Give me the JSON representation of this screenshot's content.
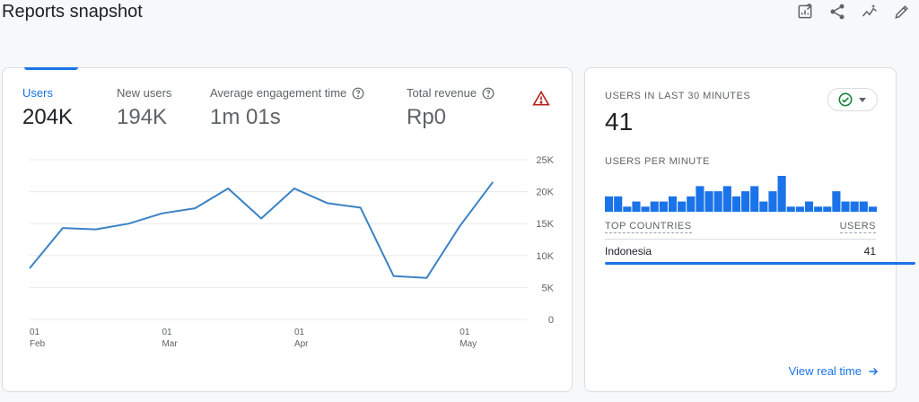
{
  "page": {
    "title": "Reports snapshot"
  },
  "toolbar": {
    "icons": [
      "edit-report-icon",
      "share-icon",
      "insights-icon",
      "pencil-icon"
    ]
  },
  "metrics": [
    {
      "label": "Users",
      "value": "204K",
      "has_help": false,
      "active": true
    },
    {
      "label": "New users",
      "value": "194K",
      "has_help": false,
      "active": false
    },
    {
      "label": "Average engagement time",
      "value": "1m 01s",
      "has_help": true,
      "active": false
    },
    {
      "label": "Total revenue",
      "value": "Rp0",
      "has_help": true,
      "active": false
    }
  ],
  "colors": {
    "accent": "#1a73e8",
    "line": "#3b82c4",
    "bar": "#1a73e8",
    "warning": "#b3261e",
    "success": "#188038"
  },
  "chart_data": {
    "type": "line",
    "x": [
      "Feb 1",
      "Feb 8",
      "Feb 15",
      "Feb 22",
      "Mar 1",
      "Mar 8",
      "Mar 15",
      "Mar 22",
      "Mar 29",
      "Apr 5",
      "Apr 12",
      "Apr 19",
      "Apr 26",
      "May 3",
      "May 10"
    ],
    "series": [
      {
        "values": [
          8000,
          14300,
          14100,
          15000,
          16600,
          17400,
          20500,
          15800,
          20500,
          18200,
          17500,
          6800,
          6500,
          14600,
          21500
        ]
      }
    ],
    "ylim": [
      0,
      25000
    ],
    "y_ticks": [
      0,
      5000,
      10000,
      15000,
      20000,
      25000
    ],
    "y_tick_labels": [
      "0",
      "5K",
      "10K",
      "15K",
      "20K",
      "25K"
    ],
    "x_ticks": [
      {
        "index": 0,
        "day": "01",
        "month": "Feb"
      },
      {
        "index": 4,
        "day": "01",
        "month": "Mar"
      },
      {
        "index": 8,
        "day": "01",
        "month": "Apr"
      },
      {
        "index": 13,
        "day": "01",
        "month": "May"
      }
    ],
    "grid": true
  },
  "realtime": {
    "title": "USERS IN LAST 30 MINUTES",
    "count": "41",
    "status_icon": "check-circle-icon",
    "per_minute_label": "USERS PER MINUTE",
    "per_minute": [
      3,
      3,
      1,
      2,
      1,
      2,
      2,
      3,
      2,
      3,
      5,
      4,
      4,
      5,
      3,
      4,
      5,
      2,
      4,
      7,
      1,
      1,
      2,
      1,
      1,
      4,
      2,
      2,
      2,
      1
    ],
    "columns": {
      "left": "TOP COUNTRIES",
      "right": "USERS"
    },
    "rows": [
      {
        "country": "Indonesia",
        "users": "41",
        "share": 1.0
      }
    ],
    "link_label": "View real time"
  }
}
